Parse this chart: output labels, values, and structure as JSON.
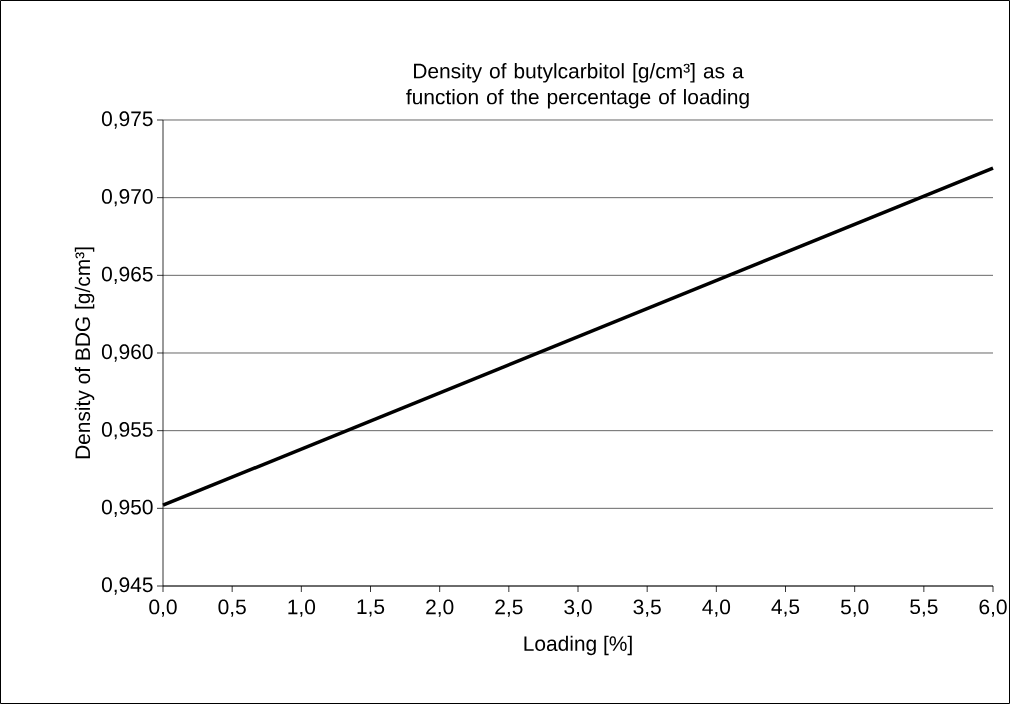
{
  "chart_data": {
    "type": "line",
    "title": "Density of butylcarbitol [g/cm³] as a function of the percentage of loading",
    "xlabel": "Loading [%]",
    "ylabel": "Density of BDG [g/cm³]",
    "x": [
      0,
      6
    ],
    "series": [
      {
        "color": "#000000",
        "values": [
          0.9502,
          0.9719
        ]
      }
    ],
    "xlim": [
      0,
      6
    ],
    "xticks": [
      {
        "value": 0,
        "label": "0,0"
      },
      {
        "value": 0.5,
        "label": "0,5"
      },
      {
        "value": 1,
        "label": "1,0"
      },
      {
        "value": 1.5,
        "label": "1,5"
      },
      {
        "value": 2,
        "label": "2,0"
      },
      {
        "value": 2.5,
        "label": "2,5"
      },
      {
        "value": 3,
        "label": "3,0"
      },
      {
        "value": 3.5,
        "label": "3,5"
      },
      {
        "value": 4,
        "label": "4,0"
      },
      {
        "value": 4.5,
        "label": "4,5"
      },
      {
        "value": 5,
        "label": "5,0"
      },
      {
        "value": 5.5,
        "label": "5,5"
      },
      {
        "value": 6,
        "label": "6,0"
      }
    ],
    "ylim": [
      0.945,
      0.975
    ],
    "yticks": [
      {
        "value": 0.945,
        "label": "0,945"
      },
      {
        "value": 0.95,
        "label": "0,950"
      },
      {
        "value": 0.955,
        "label": "0,955"
      },
      {
        "value": 0.96,
        "label": "0,960"
      },
      {
        "value": 0.965,
        "label": "0,965"
      },
      {
        "value": 0.97,
        "label": "0,970"
      },
      {
        "value": 0.975,
        "label": "0,975"
      }
    ],
    "grid": "y"
  }
}
